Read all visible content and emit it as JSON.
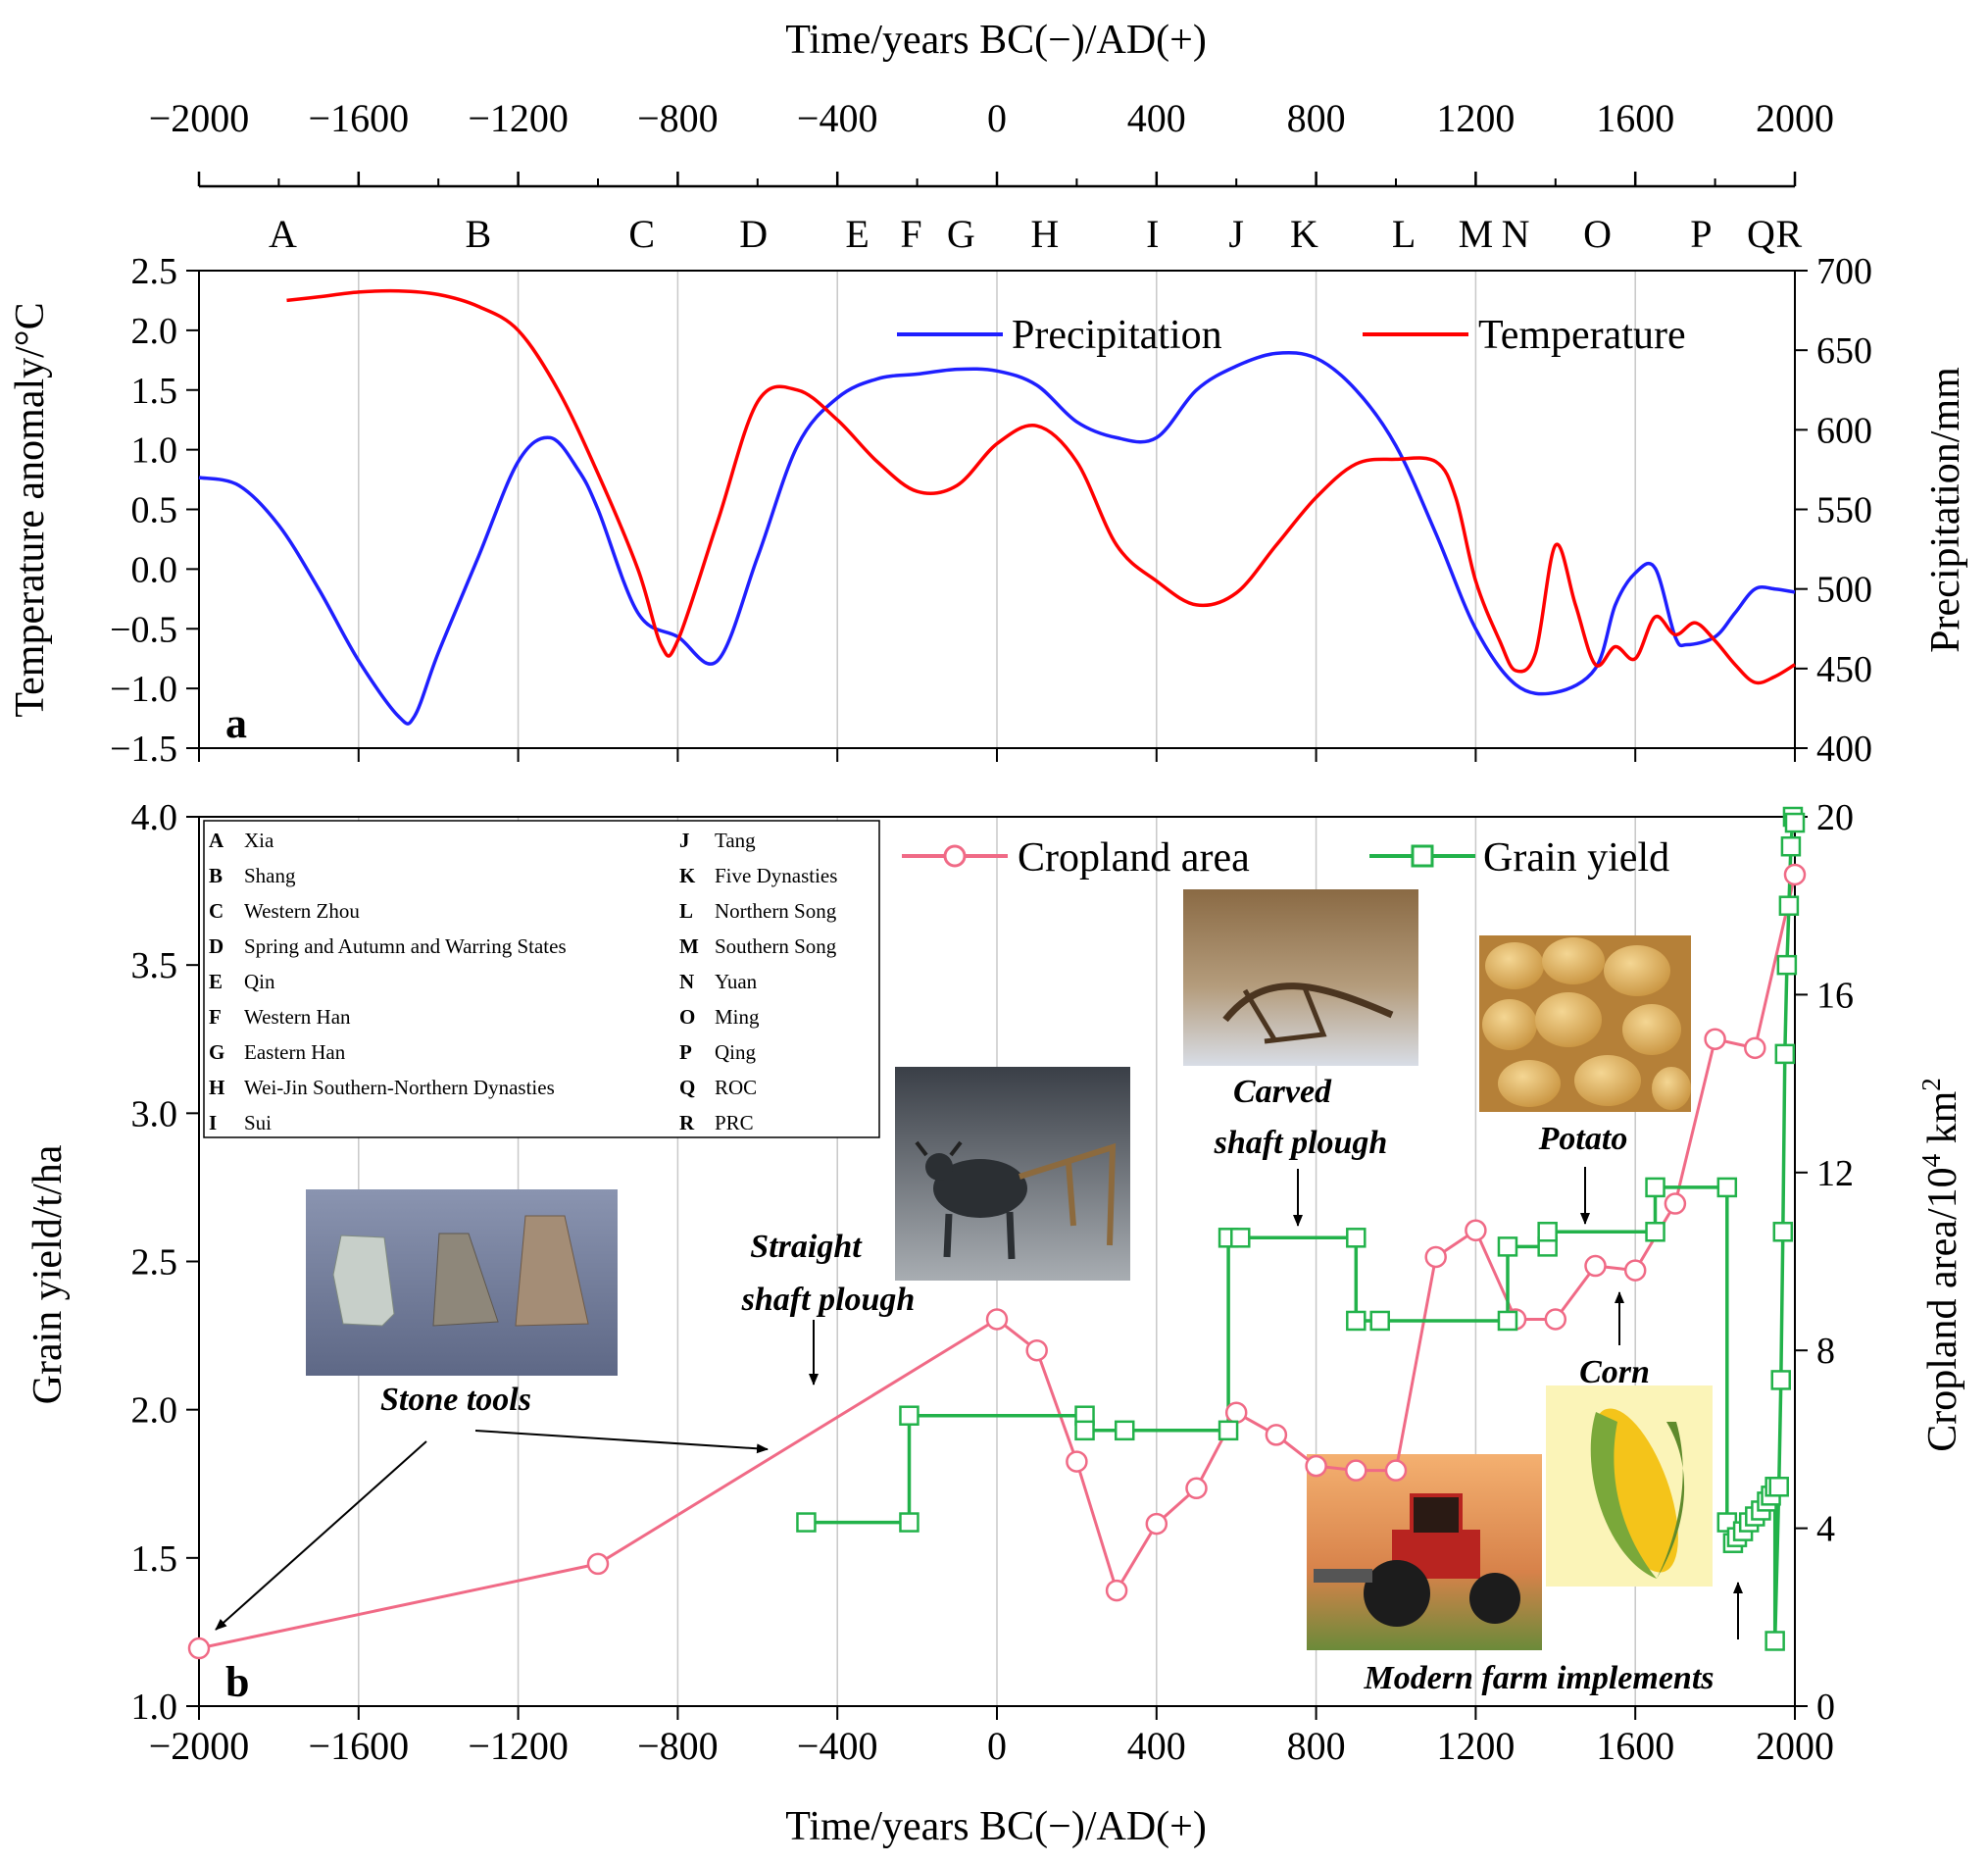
{
  "chart_data": [
    {
      "panel": "a",
      "type": "line",
      "title": "",
      "top_axis": {
        "label": "Time/years BC(−)/AD(+)",
        "ticks": [
          "−2000",
          "−1600",
          "−1200",
          "−800",
          "−400",
          "0",
          "400",
          "800",
          "1200",
          "1600",
          "2000"
        ]
      },
      "xlim": [
        -2000,
        2000
      ],
      "dynasty_letters": [
        {
          "letter": "A",
          "year": -1790
        },
        {
          "letter": "B",
          "year": -1300
        },
        {
          "letter": "C",
          "year": -890
        },
        {
          "letter": "D",
          "year": -610
        },
        {
          "letter": "E",
          "year": -350
        },
        {
          "letter": "F",
          "year": -215
        },
        {
          "letter": "G",
          "year": -90
        },
        {
          "letter": "H",
          "year": 120
        },
        {
          "letter": "I",
          "year": 390
        },
        {
          "letter": "J",
          "year": 600
        },
        {
          "letter": "K",
          "year": 770
        },
        {
          "letter": "L",
          "year": 1020
        },
        {
          "letter": "M",
          "year": 1200
        },
        {
          "letter": "N",
          "year": 1300
        },
        {
          "letter": "O",
          "year": 1505
        },
        {
          "letter": "P",
          "year": 1765
        },
        {
          "letter": "Q",
          "year": 1915
        },
        {
          "letter": "R",
          "year": 1985
        }
      ],
      "ylabel": "Temperature anomaly/°C",
      "ylim": [
        -1.5,
        2.5
      ],
      "yticks": [
        "−1.5",
        "−1.0",
        "−0.5",
        "0.0",
        "0.5",
        "1.0",
        "1.5",
        "2.0",
        "2.5"
      ],
      "y2label": "Precipitation/mm",
      "y2lim": [
        400,
        700
      ],
      "y2ticks": [
        "400",
        "450",
        "500",
        "550",
        "600",
        "650",
        "700"
      ],
      "panel_label": "a",
      "series": [
        {
          "name": "Precipitation",
          "color": "#1f1fff",
          "axis": "right",
          "x": [
            -2000,
            -1900,
            -1800,
            -1700,
            -1600,
            -1500,
            -1460,
            -1400,
            -1300,
            -1200,
            -1120,
            -1050,
            -1000,
            -900,
            -800,
            -700,
            -600,
            -500,
            -400,
            -300,
            -200,
            -100,
            0,
            100,
            200,
            300,
            400,
            500,
            600,
            700,
            800,
            900,
            1000,
            1100,
            1200,
            1300,
            1400,
            1500,
            1550,
            1600,
            1650,
            1700,
            1730,
            1800,
            1850,
            1900,
            1950,
            2000
          ],
          "values": [
            570,
            565,
            540,
            500,
            455,
            420,
            420,
            460,
            520,
            580,
            595,
            575,
            550,
            485,
            470,
            455,
            520,
            590,
            620,
            632,
            635,
            638,
            637,
            628,
            605,
            595,
            595,
            625,
            640,
            648,
            645,
            625,
            590,
            535,
            475,
            440,
            435,
            450,
            490,
            510,
            513,
            470,
            465,
            470,
            485,
            500,
            500,
            498
          ]
        },
        {
          "name": "Temperature",
          "color": "#ff0000",
          "axis": "left",
          "x": [
            -1780,
            -1700,
            -1600,
            -1500,
            -1400,
            -1300,
            -1200,
            -1100,
            -1000,
            -900,
            -840,
            -800,
            -700,
            -600,
            -500,
            -400,
            -300,
            -200,
            -100,
            0,
            100,
            200,
            300,
            400,
            500,
            600,
            700,
            800,
            900,
            1000,
            1100,
            1150,
            1200,
            1260,
            1300,
            1350,
            1400,
            1450,
            1500,
            1550,
            1600,
            1650,
            1700,
            1750,
            1800,
            1850,
            1900,
            1950,
            2000
          ],
          "values": [
            2.25,
            2.28,
            2.32,
            2.33,
            2.3,
            2.2,
            2.0,
            1.5,
            0.8,
            0.0,
            -0.65,
            -0.6,
            0.4,
            1.4,
            1.5,
            1.25,
            0.9,
            0.65,
            0.7,
            1.05,
            1.2,
            0.9,
            0.2,
            -0.1,
            -0.3,
            -0.2,
            0.2,
            0.6,
            0.88,
            0.92,
            0.9,
            0.6,
            -0.1,
            -0.6,
            -0.85,
            -0.7,
            0.2,
            -0.3,
            -0.8,
            -0.65,
            -0.75,
            -0.4,
            -0.55,
            -0.45,
            -0.6,
            -0.8,
            -0.95,
            -0.9,
            -0.8
          ]
        }
      ]
    },
    {
      "panel": "b",
      "type": "line",
      "title": "",
      "xlabel": "Time/years BC(−)/AD(+)",
      "xlim": [
        -2000,
        2000
      ],
      "xticks": [
        "−2000",
        "−1600",
        "−1200",
        "−800",
        "−400",
        "0",
        "400",
        "800",
        "1200",
        "1600",
        "2000"
      ],
      "ylabel": "Grain yield/t/ha",
      "ylim": [
        1.0,
        4.0
      ],
      "yticks": [
        "1.0",
        "1.5",
        "2.0",
        "2.5",
        "3.0",
        "3.5",
        "4.0"
      ],
      "y2label": "Cropland area/10",
      "y2label_sup": "4",
      "y2label_unit": " km",
      "y2label_sup2": "2",
      "y2lim": [
        0,
        20
      ],
      "y2ticks": [
        "0",
        "4",
        "8",
        "12",
        "16",
        "20"
      ],
      "panel_label": "b",
      "series": [
        {
          "name": "Cropland area",
          "color": "#f06a86",
          "marker": "circle",
          "axis": "right",
          "x": [
            -2000,
            -1000,
            0,
            100,
            200,
            300,
            400,
            500,
            600,
            700,
            800,
            900,
            1000,
            1100,
            1200,
            1300,
            1400,
            1500,
            1600,
            1700,
            1800,
            1900,
            2000
          ],
          "values": [
            1.3,
            3.2,
            8.7,
            8.0,
            5.5,
            2.6,
            4.1,
            4.9,
            6.6,
            6.1,
            5.4,
            5.3,
            5.3,
            10.1,
            10.7,
            8.7,
            8.7,
            9.9,
            9.8,
            11.3,
            15.0,
            14.8,
            18.7
          ]
        },
        {
          "name": "Grain yield",
          "color": "#22b24a",
          "marker": "square",
          "axis": "left",
          "x": [
            -478,
            -220,
            -220,
            220,
            220,
            320,
            320,
            580,
            580,
            610,
            610,
            900,
            900,
            960,
            960,
            1280,
            1280,
            1280,
            1280,
            1380,
            1380,
            1650,
            1650,
            1830,
            1830,
            1845,
            1855,
            1870,
            1885,
            1900,
            1915,
            1930,
            1940,
            1950,
            1950,
            1960,
            1965,
            1970,
            1975,
            1980,
            1985,
            1990,
            1995,
            2000
          ],
          "values": [
            1.62,
            1.62,
            1.98,
            1.98,
            1.93,
            1.93,
            1.93,
            1.93,
            2.58,
            2.58,
            2.58,
            2.58,
            2.3,
            2.3,
            2.3,
            2.3,
            2.3,
            2.55,
            2.55,
            2.55,
            2.6,
            2.6,
            2.75,
            2.75,
            1.62,
            1.55,
            1.57,
            1.59,
            1.62,
            1.64,
            1.66,
            1.69,
            1.71,
            1.74,
            1.22,
            1.74,
            2.1,
            2.6,
            3.2,
            3.5,
            3.7,
            3.9,
            4.0,
            3.98
          ]
        }
      ],
      "legend_dynasties": [
        {
          "key": "A",
          "name": "Xia"
        },
        {
          "key": "B",
          "name": "Shang"
        },
        {
          "key": "C",
          "name": "Western Zhou"
        },
        {
          "key": "D",
          "name": "Spring and Autumn and Warring States"
        },
        {
          "key": "E",
          "name": "Qin"
        },
        {
          "key": "F",
          "name": "Western Han"
        },
        {
          "key": "G",
          "name": "Eastern Han"
        },
        {
          "key": "H",
          "name": "Wei-Jin Southern-Northern Dynasties"
        },
        {
          "key": "I",
          "name": "Sui"
        },
        {
          "key": "J",
          "name": "Tang"
        },
        {
          "key": "K",
          "name": "Five Dynasties"
        },
        {
          "key": "L",
          "name": "Northern Song"
        },
        {
          "key": "M",
          "name": "Southern Song"
        },
        {
          "key": "N",
          "name": "Yuan"
        },
        {
          "key": "O",
          "name": "Ming"
        },
        {
          "key": "P",
          "name": "Qing"
        },
        {
          "key": "Q",
          "name": "ROC"
        },
        {
          "key": "R",
          "name": "PRC"
        }
      ],
      "annotations": {
        "stone_tools": "Stone tools",
        "straight_line1": "Straight",
        "straight_line2": "shaft plough",
        "carved_line1": "Carved",
        "carved_line2": "shaft plough",
        "potato": "Potato",
        "corn": "Corn",
        "modern": "Modern farm implements"
      }
    }
  ]
}
